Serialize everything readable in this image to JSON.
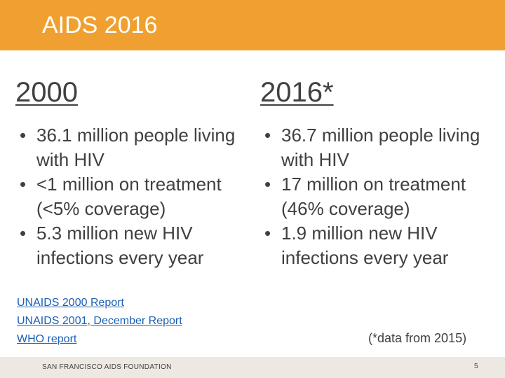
{
  "header": {
    "title": "AIDS 2016"
  },
  "columns": [
    {
      "heading": "2000",
      "bullets": [
        "36.1 million people living with HIV",
        "<1 million on treatment (<5% coverage)",
        "5.3 million new HIV infections every year"
      ]
    },
    {
      "heading": "2016*",
      "bullets": [
        "36.7 million people living with HIV",
        "17 million on treatment (46% coverage)",
        "1.9 million new HIV infections every year"
      ]
    }
  ],
  "bullet_glyph": "•",
  "links": [
    "UNAIDS 2000 Report",
    "UNAIDS 2001, December Report",
    "WHO report"
  ],
  "note": "(*data from 2015)",
  "footer": {
    "org": "SAN FRANCISCO AIDS FOUNDATION",
    "page": "5"
  },
  "colors": {
    "header": "#f0a030",
    "footer": "#ede8e1",
    "link": "#1a5fb4"
  }
}
